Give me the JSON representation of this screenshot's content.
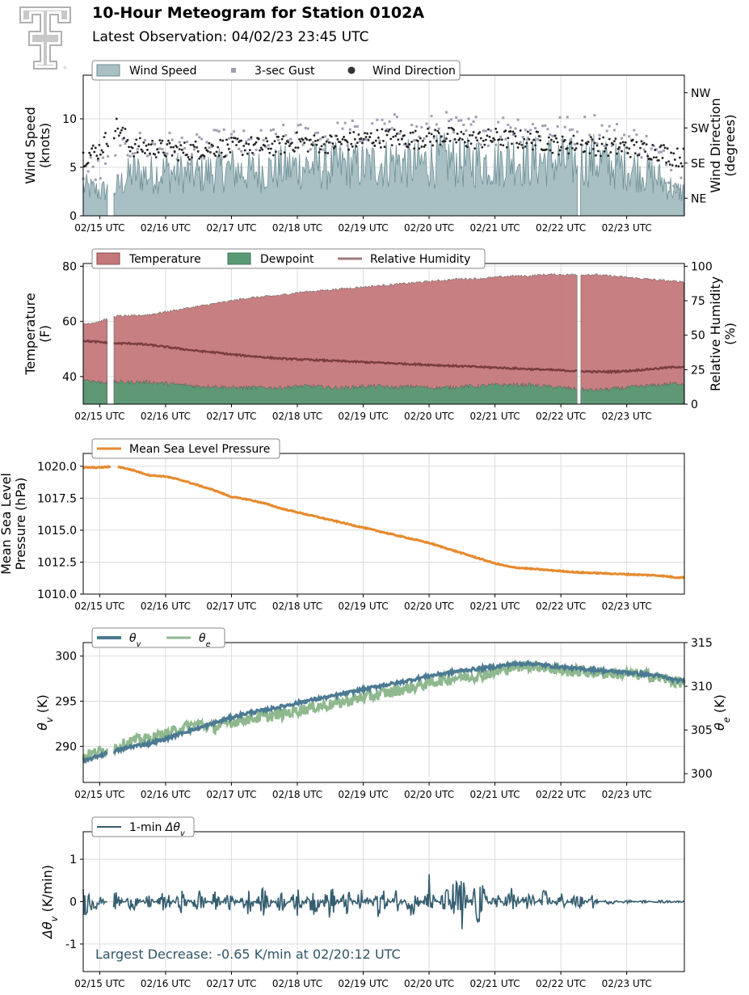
{
  "header": {
    "title": "10-Hour Meteogram for Station 0102A",
    "subtitle": "Latest Observation: 04/02/23 23:45 UTC"
  },
  "logo": {
    "icon": "texas-tech-double-t-logo",
    "color": "#b8b8b8"
  },
  "chart_data": [
    {
      "type": "area",
      "panel": "wind",
      "xlim": [
        "02/14 18:00",
        "02/23 21:00"
      ],
      "x_ticks": [
        "02/15 UTC",
        "02/16 UTC",
        "02/17 UTC",
        "02/18 UTC",
        "02/19 UTC",
        "02/20 UTC",
        "02/21 UTC",
        "02/22 UTC",
        "02/23 UTC"
      ],
      "ylabel": "Wind Speed\n(knots)",
      "ylim": [
        0,
        14.5
      ],
      "yticks": [
        0,
        5,
        10
      ],
      "y2label": "Wind Direction\n(degrees)",
      "y2_tick_labels": [
        "NE",
        "SE",
        "SW",
        "NW"
      ],
      "y2_tick_degrees": [
        45,
        135,
        225,
        315
      ],
      "y2lim": [
        0,
        360
      ],
      "legend": {
        "placement": "top-left",
        "entries": [
          "Wind Speed",
          "3-sec Gust",
          "Wind Direction"
        ]
      },
      "series": [
        {
          "name": "Wind Speed",
          "kind": "area",
          "color": "#a8bfc4",
          "edge": "#6b8e93",
          "x": [
            "02/14 18",
            "02/15 00",
            "02/15 06",
            "02/15 12",
            "02/15 18",
            "02/16 00",
            "02/16 06",
            "02/16 12",
            "02/16 18",
            "02/17 00",
            "02/17 06",
            "02/17 12",
            "02/17 18",
            "02/18 00",
            "02/18 06",
            "02/18 12",
            "02/18 18",
            "02/19 00",
            "02/19 06",
            "02/19 12",
            "02/19 18",
            "02/20 00",
            "02/20 06",
            "02/20 12",
            "02/20 18",
            "02/21 00",
            "02/21 06",
            "02/21 12",
            "02/21 18",
            "02/22 00",
            "02/22 06",
            "02/22 12",
            "02/22 18",
            "02/23 00",
            "02/23 06",
            "02/23 12",
            "02/23 18"
          ],
          "values": [
            3.0,
            2.5,
            2.8,
            4.5,
            4.2,
            4.6,
            4.4,
            4.3,
            4.6,
            4.8,
            4.5,
            4.7,
            4.9,
            5.0,
            5.2,
            5.0,
            5.3,
            5.1,
            5.4,
            5.6,
            5.2,
            5.5,
            5.8,
            5.4,
            5.6,
            5.3,
            6.0,
            5.5,
            5.7,
            5.6,
            5.4,
            5.8,
            5.2,
            5.0,
            4.6,
            3.8,
            2.5
          ]
        },
        {
          "name": "3-sec Gust",
          "kind": "points",
          "color": "#9e9eb4",
          "values": [
            5.0,
            4.5,
            5.5,
            7.5,
            7.0,
            7.2,
            7.0,
            6.8,
            7.3,
            7.5,
            7.2,
            7.4,
            7.8,
            8.0,
            8.3,
            8.0,
            8.5,
            8.2,
            8.6,
            9.0,
            8.4,
            8.8,
            9.2,
            8.6,
            9.0,
            8.5,
            9.5,
            8.8,
            9.0,
            8.9,
            8.6,
            9.2,
            8.3,
            8.0,
            7.4,
            6.0,
            4.0
          ]
        },
        {
          "name": "Wind Direction",
          "kind": "points",
          "color": "#222222",
          "values_degrees": [
            150,
            170,
            230,
            175,
            175,
            170,
            165,
            170,
            175,
            175,
            180,
            175,
            180,
            190,
            185,
            185,
            190,
            195,
            200,
            200,
            195,
            200,
            205,
            195,
            195,
            200,
            195,
            195,
            190,
            180,
            185,
            180,
            175,
            175,
            170,
            165,
            150
          ]
        }
      ],
      "gaps": [
        [
          "02/15 03:00",
          "02/15 05:00"
        ],
        [
          "02/22 06:00",
          "02/22 07:00"
        ]
      ]
    },
    {
      "type": "area",
      "panel": "temperature",
      "xlim": [
        "02/14 18:00",
        "02/23 21:00"
      ],
      "x_ticks": [
        "02/15 UTC",
        "02/16 UTC",
        "02/17 UTC",
        "02/18 UTC",
        "02/19 UTC",
        "02/20 UTC",
        "02/21 UTC",
        "02/22 UTC",
        "02/23 UTC"
      ],
      "ylabel": "Temperature\n(F)",
      "ylim": [
        30,
        81
      ],
      "yticks": [
        40,
        60,
        80
      ],
      "y2label": "Relative Humidity\n(%)",
      "y2lim": [
        0,
        102
      ],
      "y2ticks": [
        0,
        25,
        50,
        75,
        100
      ],
      "legend": {
        "placement": "top-left",
        "entries": [
          "Temperature",
          "Dewpoint",
          "Relative Humidity"
        ]
      },
      "series": [
        {
          "name": "Temperature",
          "kind": "area",
          "color": "#c4787a",
          "x": [
            "02/14 18",
            "02/15 00",
            "02/15 06",
            "02/15 12",
            "02/15 18",
            "02/16 00",
            "02/16 06",
            "02/16 12",
            "02/16 18",
            "02/17 00",
            "02/17 06",
            "02/17 12",
            "02/17 18",
            "02/18 00",
            "02/18 06",
            "02/18 12",
            "02/18 18",
            "02/19 00",
            "02/19 06",
            "02/19 12",
            "02/19 18",
            "02/20 00",
            "02/20 06",
            "02/20 12",
            "02/20 18",
            "02/21 00",
            "02/21 06",
            "02/21 12",
            "02/21 18",
            "02/22 00",
            "02/22 06",
            "02/22 12",
            "02/22 18",
            "02/23 00",
            "02/23 06",
            "02/23 12",
            "02/23 18"
          ],
          "values": [
            59,
            60,
            62,
            62,
            62.5,
            63.5,
            64.5,
            65.5,
            66.5,
            67.5,
            68.5,
            69,
            69.5,
            70.5,
            71,
            71.5,
            72,
            72.5,
            73,
            73.5,
            74,
            74.5,
            75,
            75.5,
            75.5,
            76,
            76.5,
            76.5,
            77,
            77,
            77,
            77,
            76.5,
            76,
            75.5,
            75,
            74.5
          ]
        },
        {
          "name": "Dewpoint",
          "kind": "area",
          "color": "#5a9a74",
          "values": [
            39,
            38,
            38,
            38,
            38,
            37.5,
            37,
            36.5,
            36.5,
            36,
            36,
            36,
            36,
            36.5,
            36.5,
            36,
            36,
            36.5,
            36.5,
            36,
            36.5,
            36,
            36,
            36.5,
            36.5,
            37,
            37,
            37,
            36.5,
            36,
            35.5,
            35,
            35.5,
            36,
            36.5,
            37,
            37.5
          ]
        },
        {
          "name": "Relative Humidity",
          "kind": "line",
          "color": "#7a3c3c",
          "values": [
            46,
            45,
            44,
            44,
            43,
            41.5,
            40,
            38.5,
            37.5,
            36,
            35,
            34,
            33,
            32.5,
            32,
            31.5,
            31,
            30.5,
            30,
            29.5,
            29,
            28.5,
            28,
            27.5,
            27,
            26.5,
            26,
            25.5,
            25,
            24.5,
            24,
            23.5,
            23.5,
            24,
            25,
            26,
            27
          ]
        }
      ],
      "gaps": [
        [
          "02/15 03:00",
          "02/15 05:00"
        ],
        [
          "02/22 06:00",
          "02/22 07:00"
        ]
      ]
    },
    {
      "type": "line",
      "panel": "pressure",
      "xlim": [
        "02/14 18:00",
        "02/23 21:00"
      ],
      "x_ticks": [
        "02/15 UTC",
        "02/16 UTC",
        "02/17 UTC",
        "02/18 UTC",
        "02/19 UTC",
        "02/20 UTC",
        "02/21 UTC",
        "02/22 UTC",
        "02/23 UTC"
      ],
      "ylabel": "Mean Sea Level\nPressure (hPa)",
      "ylim": [
        1010.0,
        1021.0
      ],
      "yticks": [
        "1010.0",
        "1012.5",
        "1015.0",
        "1017.5",
        "1020.0"
      ],
      "legend": {
        "placement": "top-left",
        "entries": [
          "Mean Sea Level Pressure"
        ]
      },
      "series": [
        {
          "name": "Mean Sea Level Pressure",
          "color": "#e68a2e",
          "x": [
            "02/14 18",
            "02/15 00",
            "02/15 06",
            "02/15 12",
            "02/15 18",
            "02/16 00",
            "02/16 06",
            "02/16 12",
            "02/16 18",
            "02/17 00",
            "02/17 06",
            "02/17 12",
            "02/17 18",
            "02/18 00",
            "02/18 06",
            "02/18 12",
            "02/18 18",
            "02/19 00",
            "02/19 06",
            "02/19 12",
            "02/19 18",
            "02/20 00",
            "02/20 06",
            "02/20 12",
            "02/20 18",
            "02/21 00",
            "02/21 06",
            "02/21 12",
            "02/21 18",
            "02/22 00",
            "02/22 06",
            "02/22 12",
            "02/22 18",
            "02/23 00",
            "02/23 06",
            "02/23 12",
            "02/23 18"
          ],
          "values": [
            1019.9,
            1019.9,
            1020.0,
            1019.7,
            1019.3,
            1019.2,
            1018.9,
            1018.5,
            1018.1,
            1017.6,
            1017.4,
            1017.1,
            1016.7,
            1016.4,
            1016.1,
            1015.8,
            1015.5,
            1015.2,
            1014.9,
            1014.6,
            1014.3,
            1014.0,
            1013.6,
            1013.2,
            1012.8,
            1012.4,
            1012.1,
            1012.0,
            1011.9,
            1011.8,
            1011.7,
            1011.65,
            1011.6,
            1011.55,
            1011.5,
            1011.45,
            1011.3
          ]
        }
      ]
    },
    {
      "type": "line",
      "panel": "theta",
      "xlim": [
        "02/14 18:00",
        "02/23 21:00"
      ],
      "x_ticks": [
        "02/15 UTC",
        "02/16 UTC",
        "02/17 UTC",
        "02/18 UTC",
        "02/19 UTC",
        "02/20 UTC",
        "02/21 UTC",
        "02/22 UTC",
        "02/23 UTC"
      ],
      "ylabel": "θv (K)",
      "ylim": [
        286,
        301.5
      ],
      "yticks": [
        290,
        295,
        300
      ],
      "y2label": "θe (K)",
      "y2lim": [
        299,
        315
      ],
      "y2ticks": [
        300,
        305,
        310,
        315
      ],
      "legend": {
        "placement": "top-left",
        "entries": [
          "θv",
          "θe"
        ]
      },
      "series": [
        {
          "name": "θv",
          "color": "#4b7a92",
          "x": [
            "02/14 18",
            "02/15 00",
            "02/15 06",
            "02/15 12",
            "02/15 18",
            "02/16 00",
            "02/16 06",
            "02/16 12",
            "02/16 18",
            "02/17 00",
            "02/17 06",
            "02/17 12",
            "02/17 18",
            "02/18 00",
            "02/18 06",
            "02/18 12",
            "02/18 18",
            "02/19 00",
            "02/19 06",
            "02/19 12",
            "02/19 18",
            "02/20 00",
            "02/20 06",
            "02/20 12",
            "02/20 18",
            "02/21 00",
            "02/21 06",
            "02/21 12",
            "02/21 18",
            "02/22 00",
            "02/22 06",
            "02/22 12",
            "02/22 18",
            "02/23 00",
            "02/23 06",
            "02/23 12",
            "02/23 18"
          ],
          "values": [
            288.3,
            289.0,
            289.5,
            290.0,
            290.3,
            290.8,
            291.5,
            292.0,
            292.6,
            293.2,
            293.7,
            294.0,
            294.4,
            294.8,
            295.2,
            295.5,
            295.9,
            296.3,
            296.7,
            297.0,
            297.4,
            297.8,
            298.1,
            298.4,
            298.6,
            298.8,
            299.1,
            299.2,
            299.0,
            298.8,
            298.6,
            298.5,
            298.3,
            298.2,
            298.0,
            297.8,
            297.3
          ]
        },
        {
          "name": "θe",
          "color": "#8fb88e",
          "values": [
            302.0,
            302.5,
            303.0,
            303.8,
            304.0,
            304.5,
            305.2,
            305.7,
            305.3,
            305.9,
            306.3,
            306.5,
            306.8,
            307.2,
            307.6,
            307.9,
            308.3,
            308.7,
            309.1,
            309.5,
            309.9,
            310.4,
            310.8,
            311.1,
            311.2,
            311.6,
            312.2,
            312.4,
            312.2,
            311.8,
            311.7,
            311.6,
            311.5,
            311.4,
            311.3,
            311.0,
            310.5
          ]
        }
      ],
      "gaps": [
        [
          "02/15 03:00",
          "02/15 05:00"
        ]
      ]
    },
    {
      "type": "line",
      "panel": "delta-theta",
      "xlim": [
        "02/14 18:00",
        "02/23 21:00"
      ],
      "x_ticks": [
        "02/15 UTC",
        "02/16 UTC",
        "02/17 UTC",
        "02/18 UTC",
        "02/19 UTC",
        "02/20 UTC",
        "02/21 UTC",
        "02/22 UTC",
        "02/23 UTC"
      ],
      "ylabel": "Δθv (K/min)",
      "ylim": [
        -1.65,
        1.65
      ],
      "yticks": [
        -1,
        0,
        1
      ],
      "legend": {
        "placement": "top-left",
        "entries": [
          "1-min Δθv"
        ]
      },
      "annotation": "Largest Decrease: -0.65 K/min at 02/20:12 UTC",
      "series": [
        {
          "name": "1-min Δθv",
          "color": "#355e70",
          "x": [
            "02/14 18",
            "02/15 00",
            "02/15 06",
            "02/15 12",
            "02/15 18",
            "02/16 00",
            "02/16 06",
            "02/16 12",
            "02/16 18",
            "02/17 00",
            "02/17 06",
            "02/17 12",
            "02/17 18",
            "02/18 00",
            "02/18 06",
            "02/18 12",
            "02/18 18",
            "02/19 00",
            "02/19 06",
            "02/19 12",
            "02/19 18",
            "02/20 00",
            "02/20 06",
            "02/20 12",
            "02/20 18",
            "02/21 00",
            "02/21 06",
            "02/21 12",
            "02/21 18",
            "02/22 00",
            "02/22 06",
            "02/22 12",
            "02/22 18",
            "02/23 00",
            "02/23 06",
            "02/23 12",
            "02/23 18"
          ],
          "values": [
            0.35,
            0.15,
            -0.25,
            0.25,
            -0.2,
            0.3,
            -0.3,
            0.35,
            -0.25,
            0.3,
            -0.35,
            0.4,
            -0.3,
            0.35,
            -0.4,
            0.45,
            -0.35,
            0.4,
            -0.45,
            0.3,
            -0.4,
            0.35,
            -0.3,
            -0.65,
            0.65,
            -0.3,
            0.4,
            -0.35,
            0.3,
            -0.25,
            0.25,
            -0.2,
            0.2,
            -0.15,
            0.1,
            -0.1,
            -0.05
          ]
        }
      ],
      "gaps": [
        [
          "02/15 03:00",
          "02/15 05:00"
        ]
      ]
    }
  ]
}
